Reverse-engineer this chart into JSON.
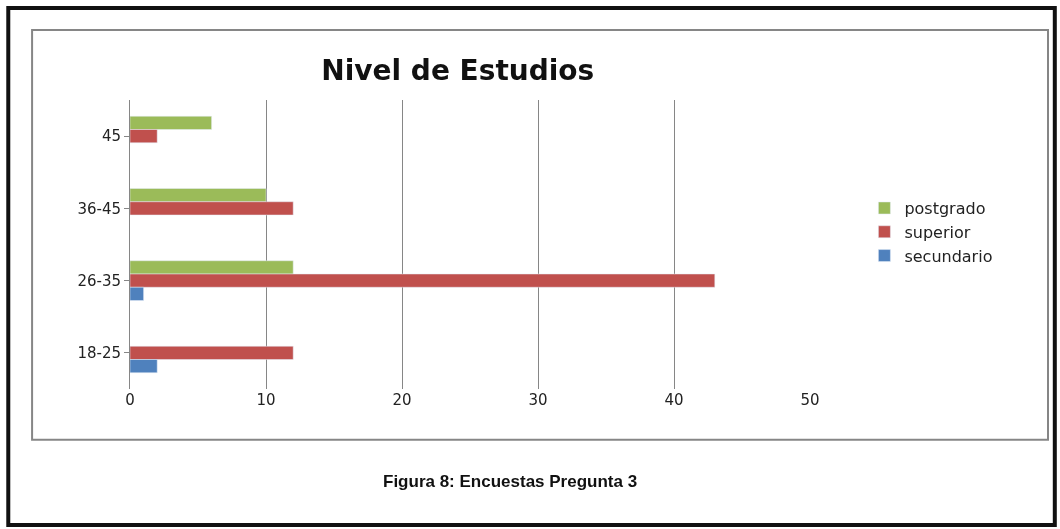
{
  "chart_data": {
    "type": "bar",
    "orientation": "horizontal",
    "title": "Nivel de Estudios",
    "categories": [
      "45",
      "36-45",
      "26-35",
      "18-25"
    ],
    "series": [
      {
        "name": "postgrado",
        "color": "#9bbb59",
        "values": [
          6,
          10,
          12,
          null
        ]
      },
      {
        "name": "superior",
        "color": "#c0504d",
        "values": [
          2,
          12,
          43,
          12
        ]
      },
      {
        "name": "secundario",
        "color": "#4f81bd",
        "values": [
          null,
          null,
          1,
          2
        ]
      }
    ],
    "xlim": [
      0,
      50
    ],
    "xticks": [
      0,
      10,
      20,
      30,
      40,
      50
    ],
    "grid": "x",
    "legend": "right",
    "annotations": [
      "Figura 8: Encuestas Pregunta 3"
    ]
  }
}
